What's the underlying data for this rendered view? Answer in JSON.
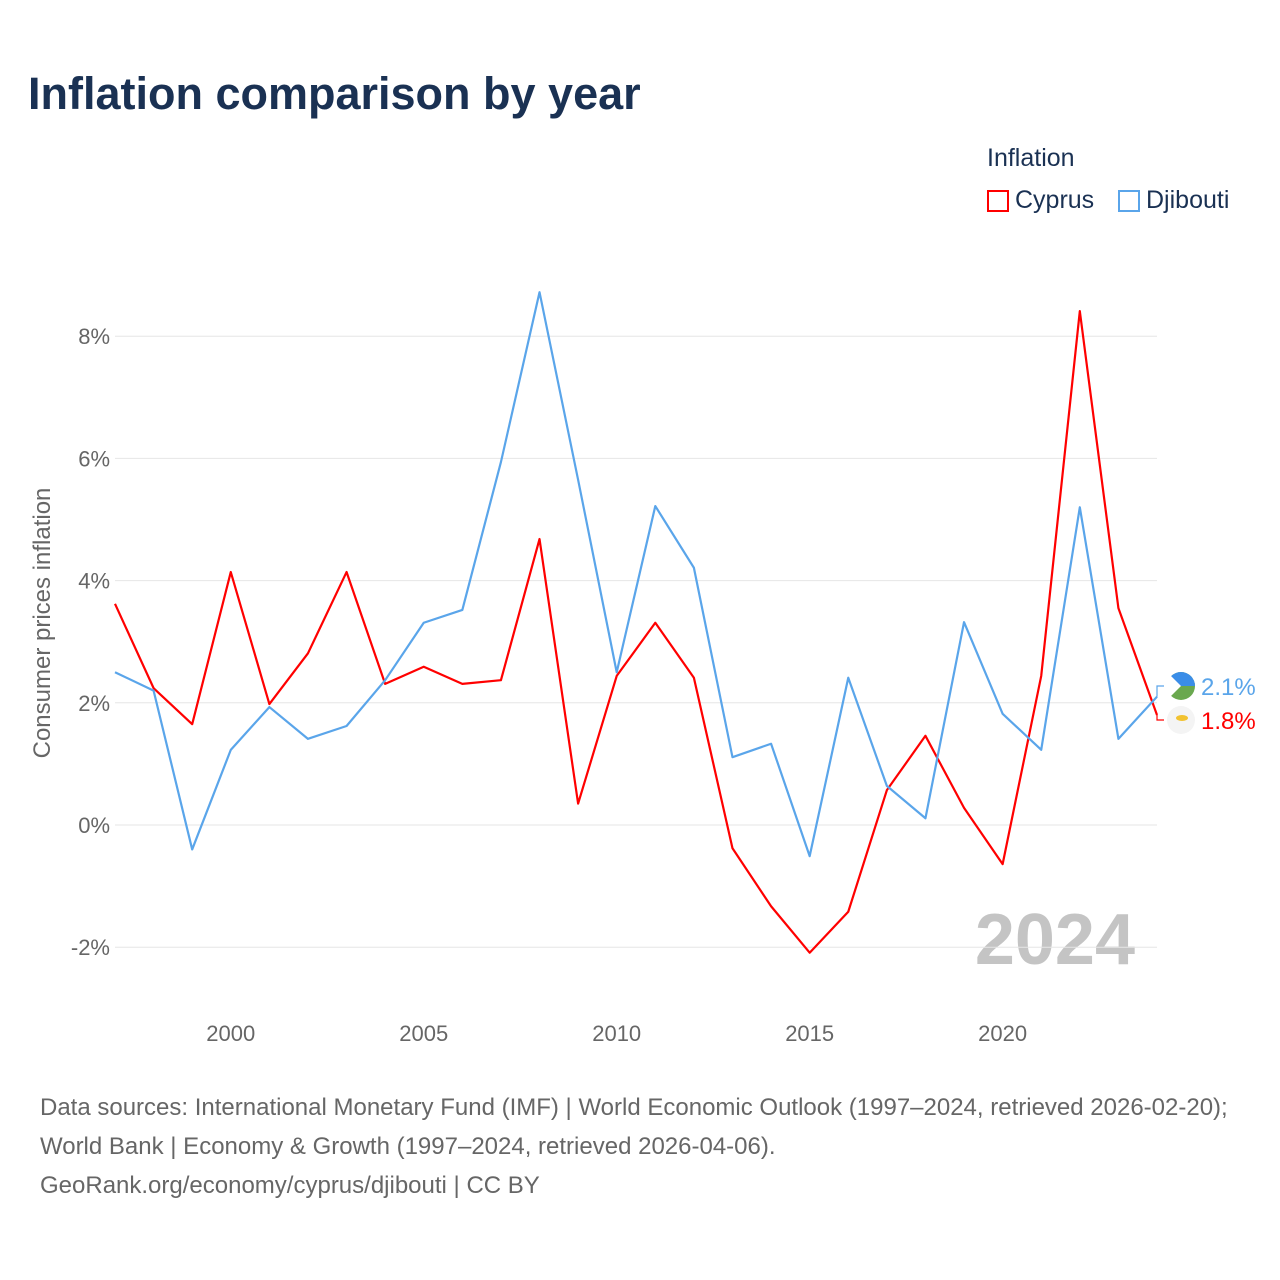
{
  "title": "Inflation comparison by year",
  "legend": {
    "title": "Inflation",
    "items": [
      {
        "label": "Cyprus",
        "color": "#ff0000"
      },
      {
        "label": "Djibouti",
        "color": "#5aa5ea"
      }
    ]
  },
  "year_watermark": "2024",
  "source_lines": [
    "Data sources: International Monetary Fund (IMF) | World Economic Outlook (1997–2024, retrieved 2026-02-20); World Bank | Economy & Growth (1997–2024, retrieved 2026-04-06).",
    "GeoRank.org/economy/cyprus/djibouti | CC BY"
  ],
  "chart_data": {
    "type": "line",
    "title": "Inflation comparison by year",
    "xlabel": "",
    "ylabel": "Consumer prices inflation",
    "xlim": [
      1997,
      2024
    ],
    "ylim": [
      -3,
      9
    ],
    "xticks": [
      2000,
      2005,
      2010,
      2015,
      2020
    ],
    "yticks": [
      -2,
      0,
      2,
      4,
      6,
      8
    ],
    "ytick_labels": [
      "-2%",
      "0%",
      "2%",
      "4%",
      "6%",
      "8%"
    ],
    "grid": true,
    "legend_position": "top-right",
    "x": [
      1997,
      1998,
      1999,
      2000,
      2001,
      2002,
      2003,
      2004,
      2005,
      2006,
      2007,
      2008,
      2009,
      2010,
      2011,
      2012,
      2013,
      2014,
      2015,
      2016,
      2017,
      2018,
      2019,
      2020,
      2021,
      2022,
      2023,
      2024
    ],
    "series": [
      {
        "name": "Cyprus",
        "color": "#ff0000",
        "end_label": "1.8%",
        "values": [
          3.62,
          2.24,
          1.65,
          4.14,
          1.98,
          2.81,
          4.14,
          2.31,
          2.59,
          2.31,
          2.37,
          4.68,
          0.35,
          2.44,
          3.31,
          2.41,
          -0.38,
          -1.33,
          -2.09,
          -1.42,
          0.57,
          1.46,
          0.28,
          -0.64,
          2.44,
          8.41,
          3.55,
          1.8
        ]
      },
      {
        "name": "Djibouti",
        "color": "#5aa5ea",
        "end_label": "2.1%",
        "values": [
          2.5,
          2.2,
          -0.4,
          1.23,
          1.93,
          1.41,
          1.62,
          2.37,
          3.31,
          3.52,
          5.94,
          8.72,
          5.65,
          2.5,
          5.22,
          4.21,
          1.11,
          1.33,
          -0.51,
          2.41,
          0.64,
          0.11,
          3.32,
          1.82,
          1.23,
          5.2,
          1.41,
          2.1
        ]
      }
    ]
  }
}
